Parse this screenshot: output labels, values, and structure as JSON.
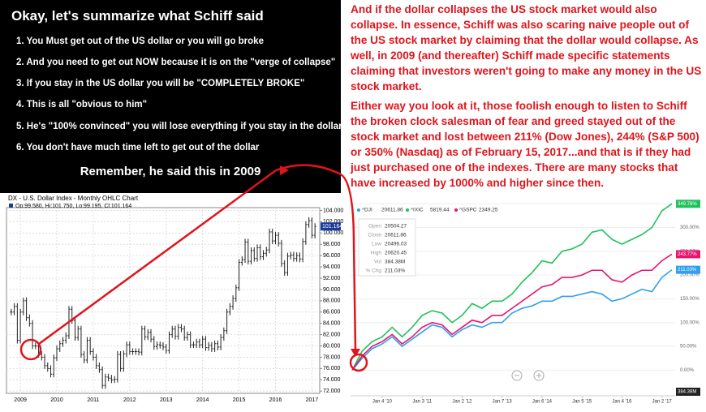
{
  "panel": {
    "title": "Okay, let's summarize what Schiff said",
    "items": [
      "1. You Must get out of the US dollar or you will go broke",
      "2. And you need to get out NOW because it is on the \"verge of collapse\"",
      "3. If you stay in the US dollar you will be \"COMPLETELY BROKE\"",
      "4. This is all \"obvious to him\"",
      "5. He's \"100% convinced\" you will lose everything if you stay in the dollar",
      "6. You don't have much time left to get out of the dollar"
    ],
    "remember": "Remember, he said this in 2009"
  },
  "commentary": [
    "And if the dollar collapses the US stock market would also collapse. In essence, Schiff was also scaring naive people out of the US stock market by claiming that the dollar would collapse. As well, in 2009 (and thereafter) Schiff made specific statements claiming that investors weren't going to make any money in the US stock market.",
    "Either way you look at it, those foolish enough to listen to Schiff the broken clock salesman of fear and greed stayed out of the stock market and lost between 211% (Dow Jones), 244% (S&P 500) or 350% (Nasdaq) as of February 15, 2017...and that is if they had just purchased one of the indexes. There are many stocks that have increased by 1000% and higher since then."
  ],
  "chart_data": [
    {
      "type": "ohlc",
      "title": "DX - U.S. Dollar Index - Monthly OHLC Chart",
      "subtitle": "Op:99.580, Hi:101.750, Lo:99.195, Cl:101.164",
      "color": "#222222",
      "categories": [
        null,
        null,
        null,
        "2009",
        null,
        null,
        null,
        null,
        null,
        null,
        null,
        null,
        null,
        null,
        null,
        "2010",
        null,
        null,
        null,
        null,
        null,
        null,
        null,
        null,
        null,
        null,
        null,
        "2011",
        null,
        null,
        null,
        null,
        null,
        null,
        null,
        null,
        null,
        null,
        null,
        "2012",
        null,
        null,
        null,
        null,
        null,
        null,
        null,
        null,
        null,
        null,
        null,
        "2013",
        null,
        null,
        null,
        null,
        null,
        null,
        null,
        null,
        null,
        null,
        null,
        "2014",
        null,
        null,
        null,
        null,
        null,
        null,
        null,
        null,
        null,
        null,
        null,
        "2015",
        null,
        null,
        null,
        null,
        null,
        null,
        null,
        null,
        null,
        null,
        null,
        "2016",
        null,
        null,
        null,
        null,
        null,
        null,
        null,
        null,
        null,
        null,
        null,
        "2017",
        null
      ],
      "values": [
        86,
        87,
        81,
        86,
        88,
        85,
        84,
        80,
        80,
        78.5,
        78,
        76.5,
        76,
        75,
        77.9,
        79.5,
        80.4,
        81,
        81.8,
        86.5,
        84.5,
        81.5,
        83,
        78.5,
        77.5,
        81,
        79,
        78,
        76.5,
        75.8,
        73,
        74.5,
        74.3,
        74,
        74.1,
        78.5,
        76,
        78.6,
        80.2,
        79,
        79,
        79,
        78.9,
        83,
        81.6,
        82.4,
        81.2,
        79.9,
        80.2,
        80.1,
        79.8,
        79.2,
        82,
        83,
        81.7,
        83.3,
        83,
        81.5,
        82,
        80.2,
        80.2,
        80.7,
        80.2,
        81.2,
        79.7,
        80.1,
        79.5,
        80.4,
        79.8,
        81.5,
        82.7,
        86,
        87,
        88.4,
        90.3,
        94.8,
        95.3,
        98.4,
        95,
        96.9,
        95.5,
        97.4,
        95.8,
        96.4,
        97,
        100.2,
        98.6,
        99.6,
        98.2,
        94.6,
        93,
        95.9,
        96.1,
        95.5,
        96,
        95.4,
        98.5,
        101.5,
        102.2,
        99.6,
        101.164
      ],
      "ylim": [
        71.6,
        104.5
      ],
      "yticks": [
        {
          "value": 72,
          "label": "72.000"
        },
        {
          "value": 74,
          "label": "74.000"
        },
        {
          "value": 76,
          "label": "76.000"
        },
        {
          "value": 78,
          "label": "78.000"
        },
        {
          "value": 80,
          "label": "80.000"
        },
        {
          "value": 82,
          "label": "82.000"
        },
        {
          "value": 84,
          "label": "84.000"
        },
        {
          "value": 86,
          "label": "86.000"
        },
        {
          "value": 88,
          "label": "88.000"
        },
        {
          "value": 90,
          "label": "90.000"
        },
        {
          "value": 92,
          "label": "92.000"
        },
        {
          "value": 94,
          "label": "94.000"
        },
        {
          "value": 96,
          "label": "96.000"
        },
        {
          "value": 98,
          "label": "98.000"
        },
        {
          "value": 100,
          "label": "100.000"
        },
        {
          "value": 102,
          "label": "102.000"
        },
        {
          "value": 104,
          "label": "104.000"
        }
      ],
      "grid": true
    },
    {
      "type": "line",
      "categories": [
        null,
        null,
        null,
        "Jan 4 '10",
        null,
        null,
        null,
        "Jan 3 '11",
        null,
        null,
        null,
        "Jan 2 '12",
        null,
        null,
        null,
        "Jan 7 '13",
        null,
        null,
        null,
        "Jan 6 '14",
        null,
        null,
        null,
        "Jan 5 '15",
        null,
        null,
        null,
        "Jan 4 '16",
        null,
        null,
        null,
        "Jan 2 '17",
        null
      ],
      "series": [
        {
          "name": "^DJI",
          "last": 20611.86,
          "color": "#2f9ff0",
          "end_label": "211.03%",
          "values": [
            0,
            25,
            45,
            55,
            70,
            50,
            65,
            80,
            95,
            90,
            70,
            85,
            95,
            90,
            100,
            100,
            120,
            130,
            135,
            145,
            145,
            155,
            155,
            160,
            165,
            160,
            145,
            150,
            160,
            170,
            165,
            195,
            211.03
          ]
        },
        {
          "name": "^IXIC",
          "last": 5819.44,
          "color": "#1fc25a",
          "end_label": "349.78%",
          "values": [
            0,
            40,
            60,
            70,
            90,
            70,
            90,
            115,
            125,
            120,
            100,
            115,
            140,
            130,
            145,
            145,
            160,
            185,
            205,
            230,
            225,
            250,
            255,
            265,
            290,
            295,
            275,
            265,
            275,
            285,
            300,
            335,
            349.78
          ]
        },
        {
          "name": "^GSPC",
          "last": 2349.25,
          "color": "#e8156e",
          "end_label": "243.77%",
          "values": [
            0,
            30,
            50,
            60,
            75,
            55,
            70,
            90,
            100,
            95,
            75,
            90,
            105,
            100,
            115,
            115,
            130,
            145,
            160,
            175,
            180,
            195,
            195,
            200,
            210,
            210,
            190,
            185,
            200,
            210,
            210,
            230,
            243.77
          ]
        }
      ],
      "tooltip": [
        {
          "label": "Open",
          "value": 20504.27
        },
        {
          "label": "Close",
          "value": 20611.86
        },
        {
          "label": "Low",
          "value": 20496.03
        },
        {
          "label": "High",
          "value": 20620.45
        },
        {
          "label": "Vol",
          "value": "384.38M"
        },
        {
          "label": "% Chg",
          "value": "211.03%"
        }
      ],
      "volume_label": "384.38M",
      "ylim": [
        -54,
        352
      ],
      "yticks": [
        {
          "value": 0,
          "label": "0.00%"
        },
        {
          "value": 50,
          "label": "50.00%"
        },
        {
          "value": 100,
          "label": "100.00%"
        },
        {
          "value": 150,
          "label": "150.00%"
        },
        {
          "value": 200,
          "label": "200.00%"
        },
        {
          "value": 250,
          "label": "250.00%"
        },
        {
          "value": 300,
          "label": "300.00%"
        },
        {
          "value": 350,
          "label": "350.00%"
        }
      ],
      "grid": true
    }
  ]
}
